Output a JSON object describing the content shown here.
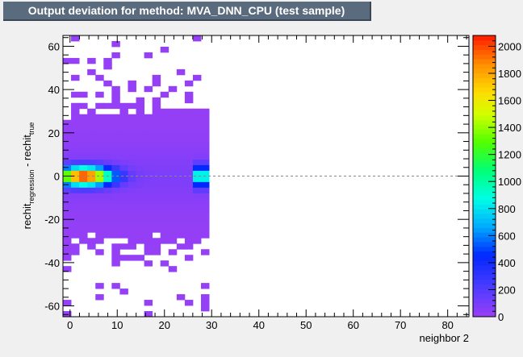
{
  "chart_data": {
    "type": "heatmap",
    "title": "Output deviation for method: MVA_DNN_CPU (test sample)",
    "xlabel": "neighbor 2",
    "ylabel": {
      "main1": "rechit",
      "sub1": "regression",
      "mid": " - rechit",
      "sub2": "true"
    },
    "xlim": [
      -1.5,
      84.5
    ],
    "ylim": [
      -65,
      65
    ],
    "x_ticks": [
      0,
      10,
      20,
      30,
      40,
      50,
      60,
      70,
      80
    ],
    "y_ticks": [
      -60,
      -40,
      -20,
      0,
      20,
      40,
      60
    ],
    "bin_width_x": 1.72,
    "bin_width_y": 2.6,
    "z_range": [
      0,
      2080
    ],
    "z_ticks": [
      0,
      200,
      400,
      600,
      800,
      1000,
      1200,
      1400,
      1600,
      1800,
      2000
    ],
    "reference_line_y": 0,
    "colors": {
      "low": "#9a3ff5",
      "high": "#ff1a00",
      "reference_line": "#888888"
    }
  }
}
